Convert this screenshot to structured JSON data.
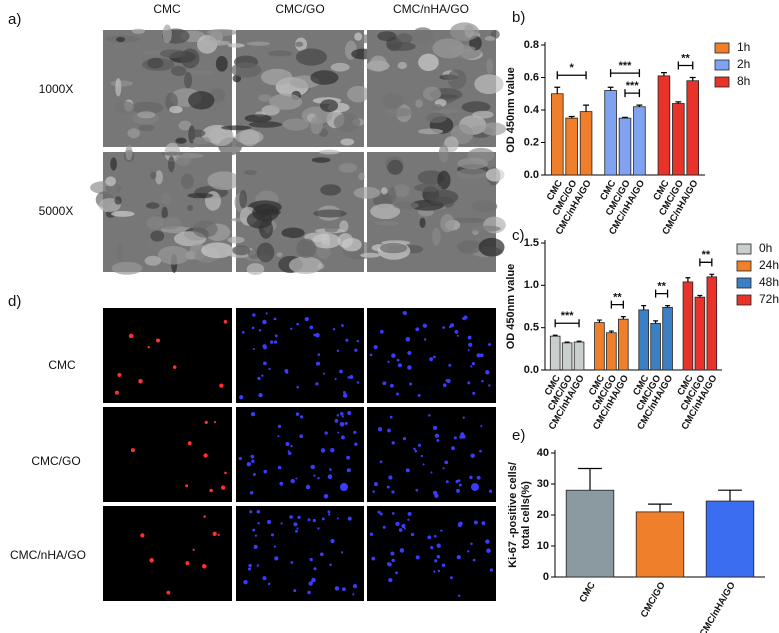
{
  "panel_a": {
    "label": "a)",
    "columns": [
      "CMC",
      "CMC/GO",
      "CMC/nHA/GO"
    ],
    "rows": [
      "1000X",
      "5000X"
    ]
  },
  "panel_d": {
    "label": "d)",
    "rows": [
      "CMC",
      "CMC/GO",
      "CMC/nHA/GO"
    ]
  },
  "chart_data": [
    {
      "type": "bar",
      "panel": "b)",
      "y_label": "OD 450nm value",
      "categories": [
        "CMC",
        "CMC/GO",
        "CMC/nHA/GO"
      ],
      "series": [
        {
          "name": "1h",
          "color": "#f07f2c",
          "values": [
            0.5,
            0.35,
            0.39
          ],
          "errors": [
            0.04,
            0.01,
            0.04
          ]
        },
        {
          "name": "2h",
          "color": "#7fa3f0",
          "values": [
            0.52,
            0.35,
            0.42
          ],
          "errors": [
            0.02,
            0.005,
            0.01
          ]
        },
        {
          "name": "8h",
          "color": "#e8332b",
          "values": [
            0.61,
            0.44,
            0.58
          ],
          "errors": [
            0.02,
            0.01,
            0.02
          ]
        }
      ],
      "annotations": [
        {
          "text": "*",
          "series": 0,
          "between": [
            0,
            2
          ]
        },
        {
          "text": "***",
          "series": 1,
          "between": [
            0,
            2
          ]
        },
        {
          "text": "***",
          "series": 1,
          "between": [
            1,
            2
          ]
        },
        {
          "text": "**",
          "series": 2,
          "between": [
            1,
            2
          ]
        }
      ],
      "ylim": [
        0,
        0.8
      ],
      "yticks": [
        {
          "value": 0,
          "label": "0.0"
        },
        0.2,
        0.4,
        0.6,
        0.8
      ]
    },
    {
      "type": "bar",
      "panel": "c)",
      "y_label": "OD 450nm value",
      "categories": [
        "CMC",
        "CMC/GO",
        "CMC/nHA/GO"
      ],
      "series": [
        {
          "name": "0h",
          "color": "#c9cfcf",
          "values": [
            0.4,
            0.32,
            0.33
          ],
          "errors": [
            0.01,
            0.01,
            0.01
          ]
        },
        {
          "name": "24h",
          "color": "#f07f2c",
          "values": [
            0.56,
            0.44,
            0.6
          ],
          "errors": [
            0.03,
            0.02,
            0.03
          ]
        },
        {
          "name": "48h",
          "color": "#3b7fc4",
          "values": [
            0.71,
            0.55,
            0.74
          ],
          "errors": [
            0.05,
            0.03,
            0.02
          ]
        },
        {
          "name": "72h",
          "color": "#e8332b",
          "values": [
            1.04,
            0.86,
            1.1
          ],
          "errors": [
            0.05,
            0.02,
            0.03
          ]
        }
      ],
      "annotations": [
        {
          "text": "***",
          "series": 0,
          "between": [
            0,
            2
          ]
        },
        {
          "text": "**",
          "series": 1,
          "between": [
            1,
            2
          ]
        },
        {
          "text": "**",
          "series": 2,
          "between": [
            1,
            2
          ]
        },
        {
          "text": "**",
          "series": 3,
          "between": [
            1,
            2
          ]
        }
      ],
      "ylim": [
        0,
        1.5
      ],
      "yticks": [
        {
          "value": 0,
          "label": "0.0"
        },
        0.5,
        {
          "value": 1,
          "label": "1.0"
        },
        1.5
      ]
    },
    {
      "type": "bar",
      "panel": "e)",
      "y_label": [
        "Ki-67 -positive cells/",
        "total cells(%)"
      ],
      "categories": [
        "CMC",
        "CMC/GO",
        "CMC/nHA/GO"
      ],
      "values": [
        28,
        21,
        24.5
      ],
      "errors": [
        7,
        2.5,
        3.5
      ],
      "colors": [
        "#8a9aa0",
        "#f07f2c",
        "#3a6df0"
      ],
      "ylim": [
        0,
        40
      ],
      "yticks": [
        0,
        10,
        20,
        30,
        40
      ]
    }
  ]
}
